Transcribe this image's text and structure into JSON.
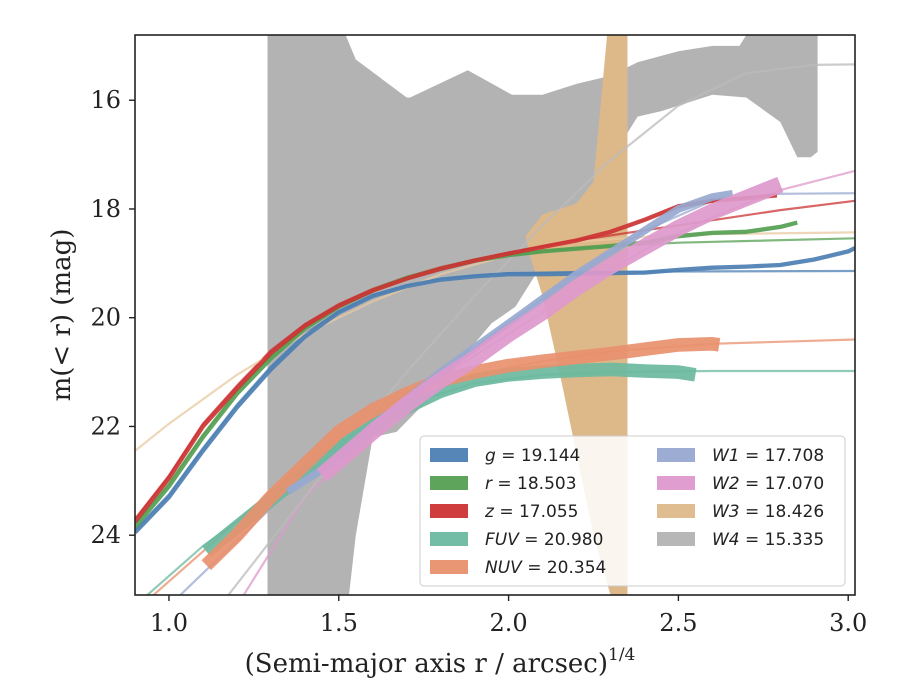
{
  "chart_data": {
    "type": "line",
    "xlabel": "(Semi-major axis r / arcsec)",
    "xlabel_sup": "1/4",
    "ylabel": "m(< r) (mag)",
    "xlim": [
      0.9,
      3.02
    ],
    "ylim": [
      25.1,
      14.8
    ],
    "y_inverted": true,
    "xticks": [
      1.0,
      1.5,
      2.0,
      2.5,
      3.0
    ],
    "xtick_labels": [
      "1.0",
      "1.5",
      "2.0",
      "2.5",
      "3.0"
    ],
    "yticks": [
      16,
      18,
      20,
      22,
      24
    ],
    "ytick_labels": [
      "16",
      "18",
      "20",
      "22",
      "24"
    ],
    "legend_placement": "lower-right",
    "legend_columns": 2,
    "series": [
      {
        "name": "g",
        "label": "g = 19.144",
        "color": "#4c7fb3",
        "width": 0.08,
        "x": [
          0.9,
          1.0,
          1.1,
          1.2,
          1.3,
          1.4,
          1.5,
          1.6,
          1.7,
          1.8,
          1.9,
          2.0,
          2.1,
          2.2,
          2.3,
          2.4,
          2.5,
          2.6,
          2.7,
          2.8,
          2.9,
          3.0,
          3.02
        ],
        "y": [
          23.95,
          23.3,
          22.45,
          21.65,
          20.95,
          20.35,
          19.9,
          19.6,
          19.42,
          19.3,
          19.24,
          19.2,
          19.2,
          19.19,
          19.18,
          19.17,
          19.12,
          19.08,
          19.06,
          19.03,
          18.93,
          18.78,
          18.72
        ]
      },
      {
        "name": "r",
        "label": "r = 18.503",
        "color": "#55a052",
        "width": 0.08,
        "x": [
          0.9,
          1.0,
          1.1,
          1.2,
          1.3,
          1.4,
          1.5,
          1.6,
          1.7,
          1.8,
          1.9,
          2.0,
          2.1,
          2.2,
          2.3,
          2.4,
          2.5,
          2.6,
          2.7,
          2.8,
          2.85
        ],
        "y": [
          23.85,
          23.1,
          22.2,
          21.4,
          20.75,
          20.2,
          19.8,
          19.5,
          19.27,
          19.1,
          18.95,
          18.85,
          18.78,
          18.73,
          18.68,
          18.62,
          18.5,
          18.44,
          18.42,
          18.33,
          18.25
        ]
      },
      {
        "name": "z",
        "label": "z = 17.055",
        "color": "#cc3333",
        "width": 0.08,
        "x": [
          0.9,
          1.0,
          1.1,
          1.2,
          1.3,
          1.4,
          1.5,
          1.6,
          1.7,
          1.8,
          1.9,
          2.0,
          2.1,
          2.2,
          2.3,
          2.4,
          2.5,
          2.6,
          2.7,
          2.79
        ],
        "y": [
          23.75,
          22.95,
          22.0,
          21.3,
          20.65,
          20.15,
          19.78,
          19.5,
          19.28,
          19.1,
          18.95,
          18.82,
          18.7,
          18.58,
          18.42,
          18.2,
          17.95,
          17.85,
          17.8,
          17.75
        ]
      },
      {
        "name": "FUV",
        "label": "FUV = 20.980",
        "color": "#6bb8a0",
        "width": 0.25,
        "x": [
          1.11,
          1.2,
          1.3,
          1.4,
          1.5,
          1.6,
          1.7,
          1.8,
          1.9,
          2.0,
          2.1,
          2.2,
          2.3,
          2.4,
          2.5,
          2.55
        ],
        "y": [
          24.3,
          23.85,
          23.35,
          22.85,
          22.4,
          22.0,
          21.65,
          21.35,
          21.15,
          21.05,
          21.0,
          20.97,
          20.95,
          20.98,
          21.0,
          21.05
        ]
      },
      {
        "name": "NUV",
        "label": "NUV = 20.354",
        "color": "#e8906e",
        "width": 0.25,
        "x": [
          1.11,
          1.2,
          1.3,
          1.4,
          1.5,
          1.6,
          1.7,
          1.8,
          1.9,
          2.0,
          2.1,
          2.2,
          2.3,
          2.4,
          2.5,
          2.6,
          2.62
        ],
        "y": [
          24.55,
          24.0,
          23.3,
          22.7,
          22.1,
          21.7,
          21.4,
          21.15,
          21.0,
          20.88,
          20.8,
          20.73,
          20.66,
          20.58,
          20.5,
          20.48,
          20.5
        ]
      },
      {
        "name": "W1",
        "label": "W1 = 17.708",
        "color": "#98a8d0",
        "width": 0.14,
        "x": [
          1.35,
          1.5,
          1.6,
          1.7,
          1.8,
          1.9,
          2.0,
          2.1,
          2.2,
          2.3,
          2.4,
          2.5,
          2.6,
          2.66
        ],
        "y": [
          23.2,
          22.6,
          22.0,
          21.5,
          21.0,
          20.55,
          20.1,
          19.65,
          19.2,
          18.8,
          18.4,
          18.0,
          17.78,
          17.72
        ]
      },
      {
        "name": "W2",
        "label": "W2 = 17.070",
        "color": "#dd99cc",
        "width": 0.3,
        "x": [
          1.45,
          1.6,
          1.7,
          1.8,
          1.9,
          2.0,
          2.1,
          2.2,
          2.3,
          2.4,
          2.5,
          2.6,
          2.7,
          2.8
        ],
        "y": [
          22.9,
          22.1,
          21.6,
          21.15,
          20.75,
          20.3,
          19.9,
          19.45,
          19.05,
          18.7,
          18.35,
          18.05,
          17.8,
          17.55
        ]
      }
    ],
    "fit_curves": [
      {
        "name": "g",
        "color": "#4c7fb3",
        "x": [
          0.9,
          1.0,
          1.1,
          1.2,
          1.3,
          1.4,
          1.5,
          1.6,
          1.7,
          1.8,
          1.9,
          2.0,
          2.2,
          2.5,
          3.02
        ],
        "y": [
          23.9,
          23.25,
          22.4,
          21.6,
          20.9,
          20.3,
          19.88,
          19.58,
          19.4,
          19.28,
          19.22,
          19.18,
          19.16,
          19.15,
          19.14
        ]
      },
      {
        "name": "r",
        "color": "#55a052",
        "x": [
          0.9,
          1.0,
          1.1,
          1.2,
          1.3,
          1.4,
          1.5,
          1.6,
          1.7,
          1.8,
          1.9,
          2.0,
          2.2,
          2.5,
          3.02
        ],
        "y": [
          23.8,
          23.05,
          22.15,
          21.35,
          20.7,
          20.18,
          19.78,
          19.48,
          19.25,
          19.08,
          18.95,
          18.85,
          18.72,
          18.62,
          18.54
        ]
      },
      {
        "name": "z",
        "color": "#cc3333",
        "x": [
          0.9,
          1.0,
          1.1,
          1.2,
          1.3,
          1.4,
          1.5,
          1.6,
          1.7,
          1.8,
          1.9,
          2.0,
          2.2,
          2.5,
          2.8,
          3.02
        ],
        "y": [
          23.7,
          22.9,
          21.95,
          21.25,
          20.6,
          20.12,
          19.75,
          19.47,
          19.25,
          19.07,
          18.93,
          18.8,
          18.58,
          18.3,
          18.02,
          17.85
        ]
      },
      {
        "name": "FUV",
        "color": "#6bb8a0",
        "x": [
          0.9,
          1.1,
          1.3,
          1.5,
          1.7,
          1.9,
          2.1,
          2.3,
          2.6,
          3.02
        ],
        "y": [
          25.3,
          24.2,
          23.3,
          22.3,
          21.6,
          21.2,
          21.05,
          21.0,
          20.98,
          20.98
        ]
      },
      {
        "name": "NUV",
        "color": "#e8906e",
        "x": [
          0.9,
          1.1,
          1.3,
          1.5,
          1.7,
          1.9,
          2.1,
          2.3,
          2.6,
          3.02
        ],
        "y": [
          25.4,
          24.3,
          23.2,
          22.2,
          21.5,
          21.05,
          20.8,
          20.62,
          20.48,
          20.4
        ]
      },
      {
        "name": "W1",
        "color": "#98a8d0",
        "x": [
          1.0,
          1.2,
          1.4,
          1.6,
          1.8,
          2.0,
          2.2,
          2.4,
          2.6,
          2.8,
          3.02
        ],
        "y": [
          25.3,
          24.1,
          22.9,
          21.9,
          21.0,
          20.1,
          19.2,
          18.4,
          17.85,
          17.72,
          17.71
        ]
      },
      {
        "name": "W2",
        "color": "#dd99cc",
        "x": [
          1.2,
          1.4,
          1.6,
          1.8,
          2.0,
          2.2,
          2.4,
          2.6,
          2.8,
          3.02
        ],
        "y": [
          25.3,
          23.3,
          22.1,
          21.1,
          20.3,
          19.5,
          18.75,
          18.15,
          17.65,
          17.3
        ]
      },
      {
        "name": "W3",
        "color": "#e8c9a0",
        "x": [
          0.9,
          1.0,
          1.2,
          1.4,
          1.6,
          1.8,
          2.0,
          2.2,
          2.5,
          3.02
        ],
        "y": [
          22.45,
          21.95,
          21.05,
          20.3,
          19.7,
          19.2,
          18.85,
          18.6,
          18.47,
          18.43
        ]
      },
      {
        "name": "W4",
        "color": "#bbbbbb",
        "x": [
          1.15,
          1.3,
          1.5,
          1.7,
          1.9,
          2.1,
          2.3,
          2.5,
          2.7,
          2.9,
          3.02
        ],
        "y": [
          25.3,
          24.1,
          22.5,
          21.0,
          19.6,
          18.3,
          17.1,
          16.1,
          15.5,
          15.35,
          15.34
        ]
      }
    ],
    "bands": [
      {
        "name": "W4",
        "label": "W4 = 15.335",
        "color": "#b3b3b3",
        "upper": {
          "x": [
            1.29,
            1.52,
            1.55,
            1.7,
            1.71,
            1.88,
            2.01,
            2.1,
            2.2,
            2.3,
            2.38,
            2.5,
            2.6,
            2.68,
            2.7,
            2.78,
            2.85,
            2.88,
            2.91
          ],
          "y": [
            14.8,
            14.8,
            15.25,
            15.95,
            15.95,
            15.45,
            15.9,
            15.9,
            15.7,
            15.55,
            15.3,
            15.1,
            15.0,
            15.0,
            14.8,
            14.8,
            14.8,
            14.8,
            14.8
          ]
        },
        "lower": {
          "x": [
            2.91,
            2.89,
            2.85,
            2.8,
            2.7,
            2.6,
            2.45,
            2.38,
            2.35,
            2.3,
            2.24,
            2.15,
            2.08,
            2.02,
            1.95,
            1.87,
            1.78,
            1.67,
            1.6,
            1.55,
            1.53,
            1.29
          ],
          "y": [
            16.95,
            17.05,
            17.05,
            16.4,
            15.95,
            15.9,
            16.2,
            16.3,
            16.6,
            17.0,
            17.7,
            18.5,
            19.2,
            19.8,
            20.1,
            20.7,
            21.4,
            22.1,
            22.2,
            24.0,
            25.1,
            25.1
          ]
        }
      },
      {
        "name": "W3",
        "label": "W3 = 18.426",
        "color": "#ddb98a",
        "upper": {
          "x": [
            2.29,
            2.35
          ],
          "y": [
            14.8,
            14.8
          ]
        },
        "lower": {
          "x": [
            2.35,
            2.35,
            2.3,
            2.25,
            2.2,
            2.15,
            2.1,
            2.06,
            2.05,
            2.1,
            2.15,
            2.2,
            2.25,
            2.29
          ],
          "y": [
            14.8,
            25.1,
            25.1,
            24.0,
            22.5,
            21.0,
            19.6,
            18.8,
            18.5,
            18.1,
            18.0,
            17.9,
            17.5,
            14.8
          ]
        }
      }
    ],
    "legend": [
      {
        "label": "g = 19.144",
        "name": "g",
        "value": "19.144",
        "color": "#4c7fb3"
      },
      {
        "label": "r = 18.503",
        "name": "r",
        "value": "18.503",
        "color": "#55a052"
      },
      {
        "label": "z = 17.055",
        "name": "z",
        "value": "17.055",
        "color": "#cc3333"
      },
      {
        "label": "FUV = 20.980",
        "name": "FUV",
        "value": "20.980",
        "color": "#6bb8a0"
      },
      {
        "label": "NUV = 20.354",
        "name": "NUV",
        "value": "20.354",
        "color": "#e8906e"
      },
      {
        "label": "W1 = 17.708",
        "name": "W1",
        "value": "17.708",
        "color": "#98a8d0"
      },
      {
        "label": "W2 = 17.070",
        "name": "W2",
        "value": "17.070",
        "color": "#dd99cc"
      },
      {
        "label": "W3 = 18.426",
        "name": "W3",
        "value": "18.426",
        "color": "#ddb98a"
      },
      {
        "label": "W4 = 15.335",
        "name": "W4",
        "value": "15.335",
        "color": "#b3b3b3"
      }
    ]
  }
}
